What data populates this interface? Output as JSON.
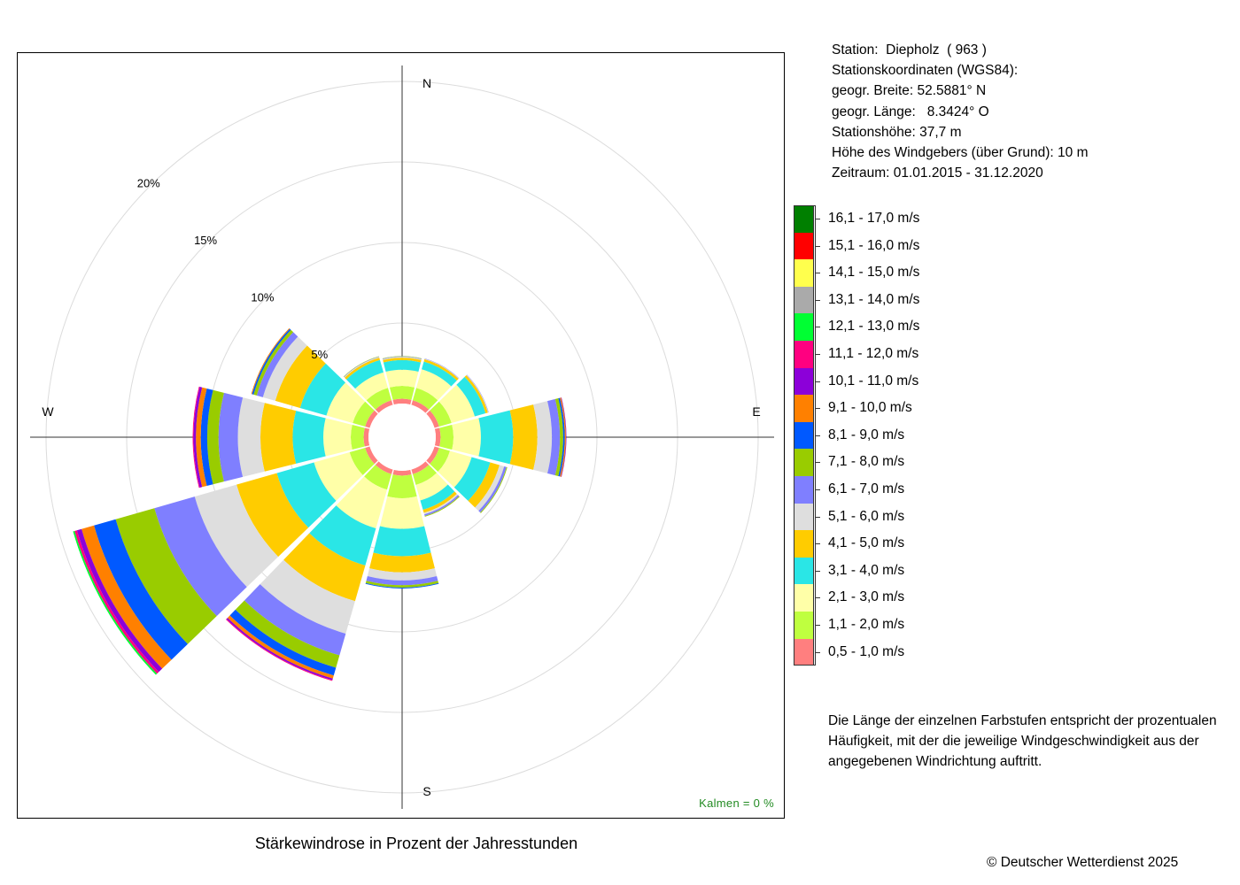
{
  "title": "Stärkewindrose in Prozent der Jahresstunden",
  "station": {
    "lines": [
      "Station:  Diepholz  ( 963 )",
      "Stationskoordinaten (WGS84):",
      "geogr. Breite: 52.5881° N",
      "geogr. Länge:   8.3424° O",
      "Stationshöhe: 37,7 m",
      "Höhe des Windgebers (über Grund): 10 m",
      "Zeitraum: 01.01.2015 - 31.12.2020"
    ]
  },
  "explanation": "Die Länge der einzelnen Farbstufen entspricht der prozentualen Häufigkeit, mit der die jeweilige Windgeschwindigkeit aus der angegebenen Windrichtung auftritt.",
  "copyright": "© Deutscher Wetterdienst  2025",
  "calms": "Kalmen  =  0 %",
  "chart_data": {
    "type": "wind-rose",
    "title": "Stärkewindrose in Prozent der Jahresstunden",
    "directions_deg": [
      0,
      30,
      60,
      90,
      120,
      150,
      180,
      210,
      240,
      270,
      300,
      330
    ],
    "cardinals": [
      {
        "label": "N",
        "angle": 0
      },
      {
        "label": "E",
        "angle": 90
      },
      {
        "label": "S",
        "angle": 180
      },
      {
        "label": "W",
        "angle": 270
      }
    ],
    "rings_percent": [
      5,
      10,
      15,
      20
    ],
    "ring_labels": [
      "5%",
      "10%",
      "15%",
      "20%"
    ],
    "speed_classes": [
      {
        "label": "0,5 - 1,0 m/s",
        "color": "#ff7f7f"
      },
      {
        "label": "1,1 - 2,0 m/s",
        "color": "#bfff3f"
      },
      {
        "label": "2,1 - 3,0 m/s",
        "color": "#ffffa8"
      },
      {
        "label": "3,1 - 4,0 m/s",
        "color": "#2ae6e6"
      },
      {
        "label": "4,1 - 5,0 m/s",
        "color": "#ffcc00"
      },
      {
        "label": "5,1 - 6,0 m/s",
        "color": "#dedede"
      },
      {
        "label": "6,1 - 7,0 m/s",
        "color": "#7f7fff"
      },
      {
        "label": "7,1 - 8,0 m/s",
        "color": "#99cc00"
      },
      {
        "label": "8,1 - 9,0 m/s",
        "color": "#0059ff"
      },
      {
        "label": "9,1 - 10,0 m/s",
        "color": "#ff8000"
      },
      {
        "label": "10,1 - 11,0 m/s",
        "color": "#8c00d9"
      },
      {
        "label": "11,1 - 12,0 m/s",
        "color": "#ff0080"
      },
      {
        "label": "12,1 - 13,0 m/s",
        "color": "#00ff33"
      },
      {
        "label": "13,1 - 14,0 m/s",
        "color": "#aaaaaa"
      },
      {
        "label": "14,1 - 15,0 m/s",
        "color": "#ffff4d"
      },
      {
        "label": "15,1 - 16,0 m/s",
        "color": "#ff0000"
      },
      {
        "label": "16,1 - 17,0 m/s",
        "color": "#007f00"
      }
    ],
    "series": [
      {
        "direction": 0,
        "values": [
          0.3,
          0.8,
          1.0,
          0.6,
          0.15,
          0.05,
          0.03,
          0.02
        ]
      },
      {
        "direction": 30,
        "values": [
          0.3,
          0.8,
          1.2,
          0.5,
          0.15,
          0.03,
          0.02
        ]
      },
      {
        "direction": 60,
        "values": [
          0.3,
          0.8,
          1.5,
          0.7,
          0.15,
          0.03,
          0.02
        ]
      },
      {
        "direction": 90,
        "values": [
          0.3,
          0.8,
          1.7,
          2.0,
          1.5,
          0.9,
          0.5,
          0.2,
          0.1,
          0.07,
          0.03
        ]
      },
      {
        "direction": 120,
        "values": [
          0.3,
          0.7,
          1.4,
          1.2,
          0.6,
          0.3,
          0.15,
          0.05
        ]
      },
      {
        "direction": 150,
        "values": [
          0.3,
          0.7,
          1.0,
          0.6,
          0.2,
          0.1,
          0.1,
          0.05
        ]
      },
      {
        "direction": 180,
        "values": [
          0.3,
          1.4,
          1.9,
          1.7,
          1.0,
          0.5,
          0.3,
          0.15,
          0.05
        ]
      },
      {
        "direction": 210,
        "values": [
          0.3,
          1.0,
          2.5,
          2.4,
          2.3,
          2.1,
          1.4,
          0.8,
          0.5,
          0.2,
          0.1,
          0.05
        ]
      },
      {
        "direction": 240,
        "values": [
          0.3,
          1.0,
          2.3,
          2.4,
          2.6,
          2.7,
          2.6,
          2.5,
          1.4,
          0.8,
          0.3,
          0.15,
          0.1
        ]
      },
      {
        "direction": 270,
        "values": [
          0.3,
          0.8,
          1.7,
          1.9,
          2.0,
          1.4,
          1.2,
          0.7,
          0.4,
          0.3,
          0.15,
          0.05
        ]
      },
      {
        "direction": 300,
        "values": [
          0.3,
          0.8,
          1.7,
          1.7,
          1.6,
          0.8,
          0.4,
          0.2,
          0.1,
          0.05
        ]
      },
      {
        "direction": 330,
        "values": [
          0.3,
          0.8,
          1.0,
          0.8,
          0.15,
          0.05,
          0.02,
          0.02
        ]
      }
    ]
  }
}
